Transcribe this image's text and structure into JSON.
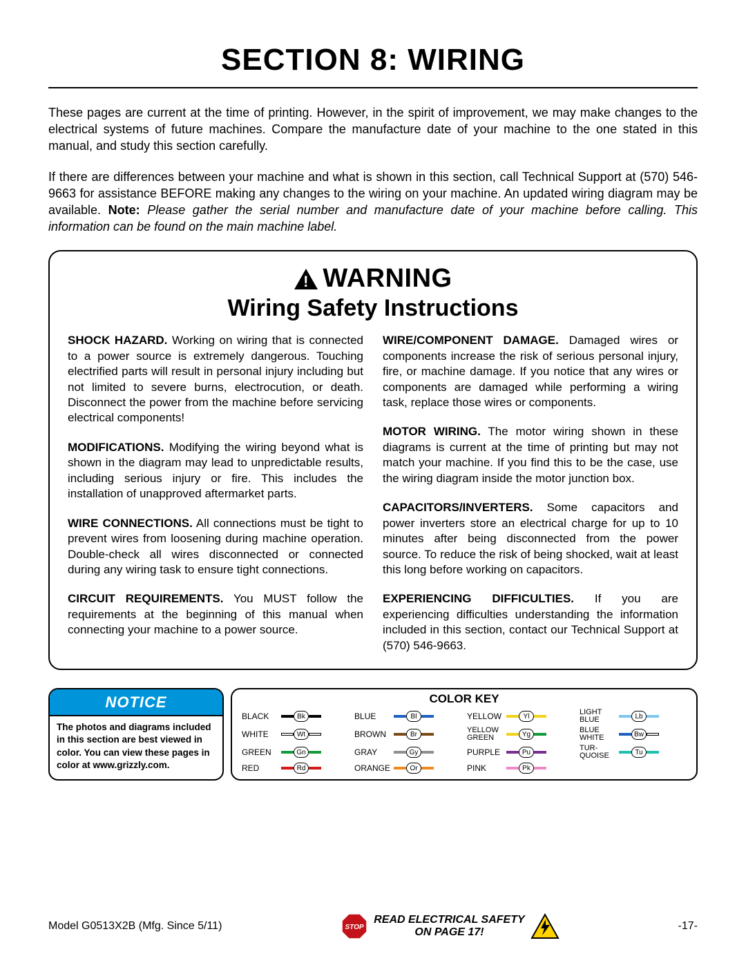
{
  "title": "SECTION 8: WIRING",
  "intro": {
    "p1": "These pages are current at the time of printing. However, in the spirit of improvement, we may make changes to the electrical systems of future machines. Compare the manufacture date of your machine to the one stated in this manual, and study this section carefully.",
    "p2a": "If there are differences between your machine and what is shown in this section, call Technical Support at (570) 546-9663 for assistance BEFORE making any changes to the wiring on your machine. An updated wiring diagram may be available. ",
    "p2_note_label": "Note:",
    "p2b_italic": " Please gather the serial number and manufacture date of your machine before calling. This information can be found on the main machine label."
  },
  "warning": {
    "word": "WARNING",
    "subtitle": "Wiring Safety Instructions",
    "left": {
      "p1_b": "SHOCK HAZARD.",
      "p1": " Working on wiring that is connected to a power source is extremely dangerous. Touching electrified parts will result in personal injury including but not limited to severe burns, electrocution, or death. Disconnect the power from the machine before servicing electrical components!",
      "p2_b": "MODIFICATIONS.",
      "p2": " Modifying the wiring beyond what is shown in the diagram may lead to unpredictable results, including serious injury or fire. This includes the installation of unapproved aftermarket parts.",
      "p3_b": "WIRE CONNECTIONS.",
      "p3": " All connections must be tight to prevent wires from loosening during machine operation. Double-check all wires disconnected or connected during any wiring task to ensure tight connections.",
      "p4_b": "CIRCUIT REQUIREMENTS.",
      "p4": " You MUST follow the requirements at the beginning of this manual when connecting your machine to a power source."
    },
    "right": {
      "p1_b": "WIRE/COMPONENT DAMAGE.",
      "p1": " Damaged wires or components increase the risk of serious personal injury, fire, or machine damage. If you notice that any wires or components are damaged while performing a wiring task, replace those wires or components.",
      "p2_b": "MOTOR WIRING.",
      "p2": " The motor wiring shown in these diagrams is current at the time of printing but may not match your machine. If you find this to be the case, use the wiring diagram inside the motor junction box.",
      "p3_b": "CAPACITORS/INVERTERS.",
      "p3": " Some capacitors and power inverters store an electrical charge for up to 10 minutes after being disconnected from the power source. To reduce the risk of being shocked, wait at least this long before working on capacitors.",
      "p4_b": "EXPERIENCING DIFFICULTIES.",
      "p4": " If you are experiencing difficulties understanding the information included in this section, contact our Technical Support at (570) 546-9663."
    }
  },
  "notice": {
    "header": "NOTICE",
    "body": "The photos and diagrams included in this section are best viewed in color. You can view these pages in color at www.grizzly.com."
  },
  "color_key": {
    "title": "COLOR KEY",
    "items": [
      {
        "name": "BLACK",
        "code": "Bk",
        "hex": "#000000"
      },
      {
        "name": "BLUE",
        "code": "Bl",
        "hex": "#1f5fbf"
      },
      {
        "name": "YELLOW",
        "code": "Yl",
        "hex": "#f2d21a"
      },
      {
        "name": "LIGHT BLUE",
        "code": "Lb",
        "hex": "#7fc6ef",
        "two": true
      },
      {
        "name": "WHITE",
        "code": "Wt",
        "hex": "#ffffff",
        "outline": true
      },
      {
        "name": "BROWN",
        "code": "Br",
        "hex": "#7a4b17"
      },
      {
        "name": "YELLOW GREEN",
        "code": "Yg",
        "hex": "#f2d21a",
        "hex2": "#149a3c",
        "two": true
      },
      {
        "name": "BLUE WHITE",
        "code": "Bw",
        "hex": "#1f5fbf",
        "hex2": "#ffffff",
        "outline2": true,
        "two": true
      },
      {
        "name": "GREEN",
        "code": "Gn",
        "hex": "#149a3c"
      },
      {
        "name": "GRAY",
        "code": "Gy",
        "hex": "#8f8f8f"
      },
      {
        "name": "PURPLE",
        "code": "Pu",
        "hex": "#7a2f8f"
      },
      {
        "name": "TUR-QUOISE",
        "code": "Tu",
        "hex": "#1fbfae",
        "two": true
      },
      {
        "name": "RED",
        "code": "Rd",
        "hex": "#d21a1a"
      },
      {
        "name": "ORANGE",
        "code": "Or",
        "hex": "#ef8a1f"
      },
      {
        "name": "PINK",
        "code": "Pk",
        "hex": "#ef8ac6"
      }
    ]
  },
  "footer": {
    "left": "Model G0513X2B (Mfg. Since 5/11)",
    "stop": "STOP",
    "center1": "READ ELECTRICAL SAFETY",
    "center2": "ON PAGE 17!",
    "right": "-17-"
  },
  "colors": {
    "notice_bg": "#0095da",
    "stop_red": "#c3121a",
    "bolt_yellow": "#ffd200"
  }
}
